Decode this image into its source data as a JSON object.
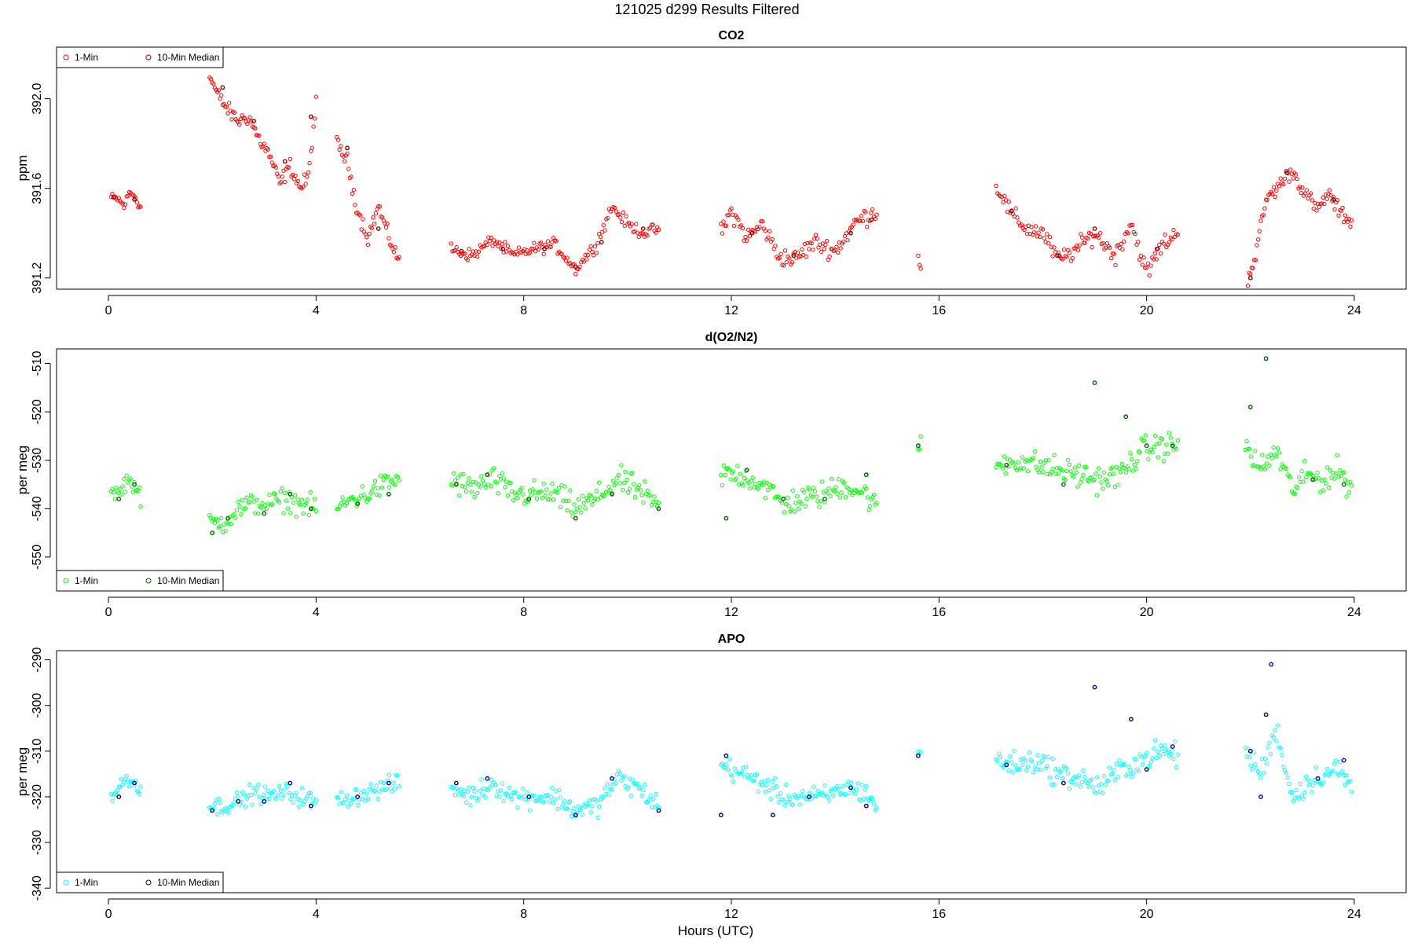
{
  "figure": {
    "main_title": "121025   d299   Results Filtered",
    "xlabel": "Hours (UTC)",
    "point_radius": 2.2
  },
  "chart_data": [
    {
      "type": "scatter",
      "title": "CO2",
      "ylabel": "ppm",
      "xlim": [
        -1.0,
        25.0
      ],
      "ylim": [
        391.15,
        392.23
      ],
      "xticks": [
        0,
        4,
        8,
        12,
        16,
        20,
        24
      ],
      "yticks": [
        391.2,
        391.6,
        392.0
      ],
      "ytick_labels": [
        "391.2",
        "391.6",
        "392.0"
      ],
      "legend": {
        "placement": "top-left",
        "entries": [
          "1-Min",
          "10-Min Median"
        ]
      },
      "colors": {
        "one_min": "#ff0000",
        "median": "#8b0000"
      },
      "segments": [
        {
          "x": [
            0.05,
            0.2,
            0.3,
            0.4,
            0.5,
            0.62
          ],
          "y": [
            391.56,
            391.55,
            391.52,
            391.58,
            391.57,
            391.51
          ],
          "noise": 0.03
        },
        {
          "x": [
            1.95,
            2.1,
            2.3,
            2.5,
            2.7,
            2.9,
            3.1,
            3.3,
            3.5,
            3.7,
            3.85,
            4.0
          ],
          "y": [
            392.1,
            392.02,
            391.95,
            391.9,
            391.92,
            391.82,
            391.75,
            391.62,
            391.7,
            391.6,
            391.65,
            391.98
          ],
          "noise": 0.05
        },
        {
          "x": [
            4.4,
            4.6,
            4.8,
            5.0,
            5.2,
            5.4,
            5.6
          ],
          "y": [
            391.8,
            391.72,
            391.5,
            391.38,
            391.52,
            391.38,
            391.28
          ],
          "noise": 0.05
        },
        {
          "x": [
            6.6,
            7.0,
            7.4,
            7.8,
            8.2,
            8.6,
            9.0,
            9.4,
            9.7,
            10.0,
            10.3,
            10.6
          ],
          "y": [
            391.33,
            391.3,
            391.37,
            391.3,
            391.33,
            391.35,
            391.24,
            391.35,
            391.52,
            391.44,
            391.4,
            391.42
          ],
          "noise": 0.04
        },
        {
          "x": [
            11.8,
            12.0,
            12.3,
            12.6,
            12.9,
            13.2,
            13.6,
            14.0,
            14.4,
            14.8
          ],
          "y": [
            391.4,
            391.5,
            391.38,
            391.44,
            391.3,
            391.28,
            391.36,
            391.32,
            391.45,
            391.5
          ],
          "noise": 0.06
        },
        {
          "x": [
            15.6,
            15.65
          ],
          "y": [
            391.3,
            391.23
          ],
          "noise": 0.03
        },
        {
          "x": [
            17.1,
            17.4,
            17.7,
            18.0,
            18.3,
            18.6,
            19.0,
            19.4,
            19.7,
            20.0,
            20.3,
            20.6
          ],
          "y": [
            391.62,
            391.48,
            391.42,
            391.4,
            391.28,
            391.32,
            391.4,
            391.3,
            391.45,
            391.22,
            391.35,
            391.4
          ],
          "noise": 0.06
        },
        {
          "x": [
            21.95,
            22.1,
            22.3,
            22.5,
            22.8,
            23.0,
            23.3,
            23.5,
            23.7,
            23.95
          ],
          "y": [
            391.2,
            391.3,
            391.55,
            391.6,
            391.68,
            391.6,
            391.5,
            391.58,
            391.5,
            391.45
          ],
          "noise": 0.05
        }
      ],
      "median_points": [
        {
          "x": 0.1,
          "y": 391.56
        },
        {
          "x": 0.5,
          "y": 391.55
        },
        {
          "x": 2.2,
          "y": 392.05
        },
        {
          "x": 2.8,
          "y": 391.9
        },
        {
          "x": 3.4,
          "y": 391.72
        },
        {
          "x": 3.9,
          "y": 391.92
        },
        {
          "x": 4.6,
          "y": 391.78
        },
        {
          "x": 5.2,
          "y": 391.42
        },
        {
          "x": 6.8,
          "y": 391.32
        },
        {
          "x": 7.6,
          "y": 391.33
        },
        {
          "x": 8.4,
          "y": 391.33
        },
        {
          "x": 9.0,
          "y": 391.25
        },
        {
          "x": 9.5,
          "y": 391.36
        },
        {
          "x": 10.3,
          "y": 391.42
        },
        {
          "x": 12.4,
          "y": 391.4
        },
        {
          "x": 13.2,
          "y": 391.3
        },
        {
          "x": 14.3,
          "y": 391.4
        },
        {
          "x": 14.7,
          "y": 391.46
        },
        {
          "x": 17.4,
          "y": 391.5
        },
        {
          "x": 18.3,
          "y": 391.3
        },
        {
          "x": 19.0,
          "y": 391.42
        },
        {
          "x": 20.2,
          "y": 391.33
        },
        {
          "x": 22.0,
          "y": 391.2
        },
        {
          "x": 22.7,
          "y": 391.67
        },
        {
          "x": 23.6,
          "y": 391.55
        }
      ]
    },
    {
      "type": "scatter",
      "title": "d(O2/N2)",
      "ylabel": "per meg",
      "xlim": [
        -1.0,
        25.0
      ],
      "ylim": [
        -557.0,
        -507.0
      ],
      "xticks": [
        0,
        4,
        8,
        12,
        16,
        20,
        24
      ],
      "yticks": [
        -550,
        -540,
        -530,
        -520,
        -510
      ],
      "ytick_labels": [
        "-550",
        "-540",
        "-530",
        "-520",
        "-510"
      ],
      "legend": {
        "placement": "bottom-left",
        "entries": [
          "1-Min",
          "10-Min Median"
        ]
      },
      "colors": {
        "one_min": "#00ff00",
        "median": "#006400"
      },
      "segments": [
        {
          "x": [
            0.05,
            0.2,
            0.35,
            0.5,
            0.62
          ],
          "y": [
            -536,
            -537,
            -534,
            -535,
            -538
          ],
          "noise": 2.5
        },
        {
          "x": [
            1.95,
            2.2,
            2.5,
            2.8,
            3.1,
            3.4,
            3.7,
            4.0
          ],
          "y": [
            -543,
            -543,
            -540,
            -539,
            -539,
            -538,
            -539,
            -540
          ],
          "noise": 3.5
        },
        {
          "x": [
            4.4,
            4.7,
            5.0,
            5.3,
            5.6
          ],
          "y": [
            -540,
            -538,
            -537,
            -535,
            -534
          ],
          "noise": 3.5
        },
        {
          "x": [
            6.6,
            7.0,
            7.4,
            7.8,
            8.2,
            8.6,
            9.0,
            9.4,
            9.8,
            10.2,
            10.6
          ],
          "y": [
            -534,
            -536,
            -534,
            -537,
            -537,
            -537,
            -540,
            -538,
            -534,
            -536,
            -540
          ],
          "noise": 4.0
        },
        {
          "x": [
            11.8,
            12.2,
            12.6,
            13.0,
            13.4,
            13.8,
            14.2,
            14.6,
            14.8
          ],
          "y": [
            -533,
            -533,
            -535,
            -539,
            -538,
            -537,
            -535,
            -537,
            -540
          ],
          "noise": 4.0
        },
        {
          "x": [
            15.6,
            15.65
          ],
          "y": [
            -528,
            -526
          ],
          "noise": 1.5
        },
        {
          "x": [
            17.1,
            17.5,
            17.9,
            18.3,
            18.7,
            19.1,
            19.5,
            19.9,
            20.3,
            20.6
          ],
          "y": [
            -531,
            -530,
            -531,
            -532,
            -533,
            -534,
            -533,
            -528,
            -527,
            -527
          ],
          "noise": 4.0
        },
        {
          "x": [
            21.9,
            22.2,
            22.5,
            22.8,
            23.1,
            23.4,
            23.7,
            23.95
          ],
          "y": [
            -527,
            -532,
            -528,
            -536,
            -533,
            -534,
            -532,
            -536
          ],
          "noise": 4.0
        }
      ],
      "median_points": [
        {
          "x": 0.2,
          "y": -538
        },
        {
          "x": 0.5,
          "y": -535
        },
        {
          "x": 2.0,
          "y": -545
        },
        {
          "x": 2.3,
          "y": -542
        },
        {
          "x": 3.0,
          "y": -541
        },
        {
          "x": 3.5,
          "y": -537
        },
        {
          "x": 3.9,
          "y": -540
        },
        {
          "x": 4.8,
          "y": -539
        },
        {
          "x": 5.4,
          "y": -537
        },
        {
          "x": 6.7,
          "y": -535
        },
        {
          "x": 7.3,
          "y": -533
        },
        {
          "x": 8.1,
          "y": -538
        },
        {
          "x": 9.0,
          "y": -542
        },
        {
          "x": 9.7,
          "y": -537
        },
        {
          "x": 10.6,
          "y": -540
        },
        {
          "x": 11.9,
          "y": -542
        },
        {
          "x": 12.3,
          "y": -532
        },
        {
          "x": 13.0,
          "y": -538
        },
        {
          "x": 13.8,
          "y": -538
        },
        {
          "x": 14.6,
          "y": -533
        },
        {
          "x": 15.6,
          "y": -527
        },
        {
          "x": 17.3,
          "y": -531
        },
        {
          "x": 18.4,
          "y": -535
        },
        {
          "x": 19.0,
          "y": -514
        },
        {
          "x": 19.6,
          "y": -521
        },
        {
          "x": 20.0,
          "y": -527
        },
        {
          "x": 20.5,
          "y": -527
        },
        {
          "x": 22.0,
          "y": -519
        },
        {
          "x": 22.3,
          "y": -509
        },
        {
          "x": 23.2,
          "y": -534
        },
        {
          "x": 23.8,
          "y": -535
        }
      ]
    },
    {
      "type": "scatter",
      "title": "APO",
      "ylabel": "per meg",
      "xlim": [
        -1.0,
        25.0
      ],
      "ylim": [
        -341.0,
        -288.0
      ],
      "xticks": [
        0,
        4,
        8,
        12,
        16,
        20,
        24
      ],
      "yticks": [
        -340,
        -330,
        -320,
        -310,
        -300,
        -290
      ],
      "ytick_labels": [
        "-340",
        "-330",
        "-320",
        "-310",
        "-300",
        "-290"
      ],
      "legend": {
        "placement": "bottom-left",
        "entries": [
          "1-Min",
          "10-Min Median"
        ]
      },
      "colors": {
        "one_min": "#00ffff",
        "median": "#00008b"
      },
      "segments": [
        {
          "x": [
            0.05,
            0.2,
            0.35,
            0.5,
            0.62
          ],
          "y": [
            -320,
            -318,
            -316,
            -317,
            -318
          ],
          "noise": 2.5
        },
        {
          "x": [
            1.95,
            2.2,
            2.5,
            2.8,
            3.1,
            3.4,
            3.7,
            4.0
          ],
          "y": [
            -322,
            -322,
            -321,
            -319,
            -320,
            -319,
            -320,
            -321
          ],
          "noise": 3.0
        },
        {
          "x": [
            4.4,
            4.7,
            5.0,
            5.3,
            5.6
          ],
          "y": [
            -321,
            -320,
            -319,
            -318,
            -317
          ],
          "noise": 3.0
        },
        {
          "x": [
            6.6,
            7.0,
            7.4,
            7.8,
            8.2,
            8.6,
            9.0,
            9.4,
            9.8,
            10.2,
            10.6
          ],
          "y": [
            -318,
            -320,
            -317,
            -320,
            -320,
            -320,
            -323,
            -322,
            -316,
            -318,
            -322
          ],
          "noise": 3.5
        },
        {
          "x": [
            11.8,
            12.2,
            12.6,
            13.0,
            13.4,
            13.8,
            14.2,
            14.6,
            14.8
          ],
          "y": [
            -313,
            -315,
            -317,
            -320,
            -320,
            -320,
            -318,
            -319,
            -322
          ],
          "noise": 3.5
        },
        {
          "x": [
            15.6,
            15.65
          ],
          "y": [
            -311,
            -310
          ],
          "noise": 1.5
        },
        {
          "x": [
            17.1,
            17.5,
            17.9,
            18.3,
            18.7,
            19.1,
            19.5,
            19.9,
            20.3,
            20.6
          ],
          "y": [
            -312,
            -313,
            -312,
            -315,
            -316,
            -318,
            -314,
            -312,
            -310,
            -311
          ],
          "noise": 4.0
        },
        {
          "x": [
            21.9,
            22.2,
            22.5,
            22.8,
            23.1,
            23.4,
            23.7,
            23.95
          ],
          "y": [
            -310,
            -315,
            -305,
            -320,
            -317,
            -315,
            -314,
            -318
          ],
          "noise": 4.0
        }
      ],
      "median_points": [
        {
          "x": 0.2,
          "y": -320
        },
        {
          "x": 0.5,
          "y": -317
        },
        {
          "x": 2.0,
          "y": -323
        },
        {
          "x": 2.5,
          "y": -321
        },
        {
          "x": 3.0,
          "y": -321
        },
        {
          "x": 3.5,
          "y": -317
        },
        {
          "x": 3.9,
          "y": -322
        },
        {
          "x": 4.8,
          "y": -320
        },
        {
          "x": 5.4,
          "y": -317
        },
        {
          "x": 6.7,
          "y": -317
        },
        {
          "x": 7.3,
          "y": -316
        },
        {
          "x": 8.1,
          "y": -320
        },
        {
          "x": 9.0,
          "y": -324
        },
        {
          "x": 9.7,
          "y": -316
        },
        {
          "x": 10.6,
          "y": -323
        },
        {
          "x": 11.8,
          "y": -324
        },
        {
          "x": 11.9,
          "y": -311
        },
        {
          "x": 12.8,
          "y": -324
        },
        {
          "x": 13.5,
          "y": -320
        },
        {
          "x": 14.3,
          "y": -318
        },
        {
          "x": 14.6,
          "y": -322
        },
        {
          "x": 15.6,
          "y": -311
        },
        {
          "x": 17.3,
          "y": -313
        },
        {
          "x": 18.4,
          "y": -317
        },
        {
          "x": 19.0,
          "y": -296
        },
        {
          "x": 19.7,
          "y": -303
        },
        {
          "x": 20.0,
          "y": -314
        },
        {
          "x": 20.5,
          "y": -309
        },
        {
          "x": 22.0,
          "y": -310
        },
        {
          "x": 22.2,
          "y": -320
        },
        {
          "x": 22.3,
          "y": -302
        },
        {
          "x": 22.4,
          "y": -291
        },
        {
          "x": 23.3,
          "y": -316
        },
        {
          "x": 23.8,
          "y": -312
        }
      ]
    }
  ]
}
